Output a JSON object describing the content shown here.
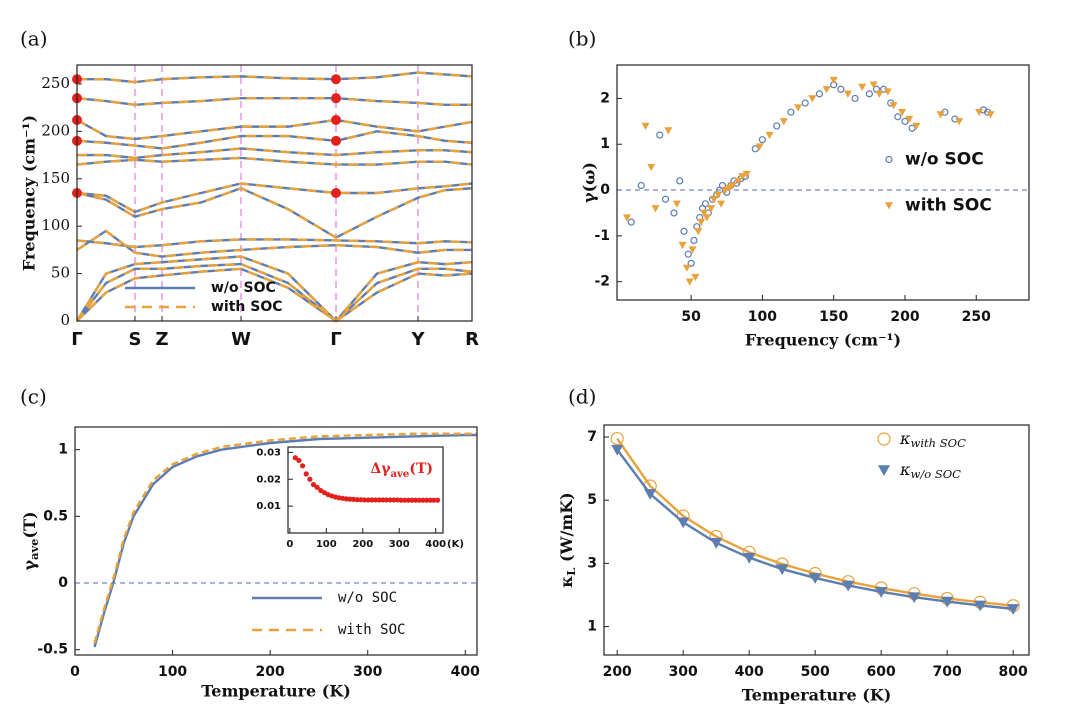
{
  "chart_data": [
    {
      "type": "band",
      "panel_label": "(a)",
      "ylabel": "Frequency (cm⁻¹)",
      "x": [
        0,
        29,
        58,
        85,
        124,
        164,
        211,
        259,
        300,
        341,
        368,
        395
      ],
      "xlim": [
        0,
        395
      ],
      "xticks": [
        {
          "value": 0,
          "label": "Γ"
        },
        {
          "value": 58,
          "label": "S"
        },
        {
          "value": 85,
          "label": "Z"
        },
        {
          "value": 164,
          "label": "W"
        },
        {
          "value": 259,
          "label": "Γ"
        },
        {
          "value": 341,
          "label": "Y"
        },
        {
          "value": 395,
          "label": "R"
        }
      ],
      "xgrid": true,
      "xgrid_color": "#d860d8",
      "ylim": [
        0,
        270
      ],
      "yticks": [
        0,
        50,
        100,
        150,
        200,
        250
      ],
      "legend": "lower left",
      "series": [
        {
          "name": "w/o SOC",
          "color": "#5b7db1",
          "dash": false,
          "bands": [
            [
              0,
              30,
              45,
              48,
              52,
              55,
              35,
              0,
              30,
              50,
              48,
              50
            ],
            [
              0,
              40,
              55,
              55,
              58,
              60,
              40,
              0,
              40,
              55,
              55,
              52
            ],
            [
              0,
              50,
              60,
              62,
              65,
              68,
              50,
              0,
              50,
              62,
              60,
              62
            ],
            [
              75,
              95,
              72,
              68,
              72,
              75,
              78,
              80,
              78,
              72,
              75,
              75
            ],
            [
              85,
              82,
              78,
              80,
              84,
              86,
              86,
              85,
              84,
              82,
              84,
              83
            ],
            [
              135,
              128,
              110,
              118,
              125,
              140,
              118,
              88,
              110,
              130,
              138,
              140
            ],
            [
              135,
              132,
              115,
              125,
              135,
              145,
              140,
              135,
              135,
              140,
              142,
              145
            ],
            [
              165,
              168,
              170,
              168,
              170,
              172,
              168,
              165,
              165,
              168,
              168,
              165
            ],
            [
              175,
              175,
              172,
              175,
              178,
              182,
              178,
              175,
              178,
              180,
              180,
              178
            ],
            [
              190,
              188,
              185,
              182,
              188,
              195,
              195,
              190,
              200,
              195,
              190,
              188
            ],
            [
              212,
              195,
              192,
              195,
              200,
              205,
              205,
              212,
              205,
              200,
              205,
              210
            ],
            [
              235,
              232,
              228,
              230,
              232,
              235,
              235,
              235,
              232,
              230,
              228,
              228
            ],
            [
              255,
              255,
              252,
              255,
              257,
              258,
              256,
              255,
              257,
              262,
              260,
              258
            ]
          ]
        },
        {
          "name": "with SOC",
          "color": "#e9a23b",
          "dash": true,
          "bands": [
            [
              0,
              30,
              45,
              48,
              52,
              55,
              35,
              0,
              30,
              50,
              48,
              50
            ],
            [
              0,
              40,
              55,
              55,
              58,
              60,
              40,
              0,
              40,
              55,
              55,
              52
            ],
            [
              0,
              50,
              60,
              62,
              65,
              68,
              50,
              0,
              50,
              62,
              60,
              62
            ],
            [
              75,
              95,
              72,
              68,
              72,
              75,
              78,
              80,
              78,
              72,
              75,
              75
            ],
            [
              85,
              82,
              78,
              80,
              84,
              86,
              86,
              85,
              84,
              82,
              84,
              83
            ],
            [
              135,
              128,
              110,
              118,
              125,
              140,
              118,
              88,
              110,
              130,
              138,
              140
            ],
            [
              135,
              132,
              115,
              125,
              135,
              145,
              140,
              135,
              135,
              140,
              142,
              145
            ],
            [
              165,
              168,
              170,
              168,
              170,
              172,
              168,
              165,
              165,
              168,
              168,
              165
            ],
            [
              175,
              175,
              172,
              175,
              178,
              182,
              178,
              175,
              178,
              180,
              180,
              178
            ],
            [
              190,
              188,
              185,
              182,
              188,
              195,
              195,
              190,
              200,
              195,
              190,
              188
            ],
            [
              212,
              195,
              192,
              195,
              200,
              205,
              205,
              212,
              205,
              200,
              205,
              210
            ],
            [
              235,
              232,
              228,
              230,
              232,
              235,
              235,
              235,
              232,
              230,
              228,
              228
            ],
            [
              255,
              255,
              252,
              255,
              257,
              258,
              256,
              255,
              257,
              262,
              260,
              258
            ]
          ]
        }
      ],
      "markers": {
        "color": "#e3211c",
        "x": [
          0,
          0,
          0,
          0,
          0,
          259,
          259,
          259,
          259,
          259
        ],
        "values": [
          255,
          235,
          212,
          190,
          135,
          255,
          235,
          212,
          190,
          135
        ]
      }
    },
    {
      "type": "scatter",
      "panel_label": "(b)",
      "xlabel": "Frequency (cm⁻¹)",
      "ylabel": "γ(ω)",
      "xlim": [
        -2,
        287
      ],
      "xticks": [
        50,
        100,
        150,
        200,
        250
      ],
      "ylim": [
        -2.4,
        2.73
      ],
      "yticks": [
        -2,
        -1,
        0,
        1,
        2
      ],
      "hline": 0,
      "hline_color": "#5566bb",
      "legend": "center right",
      "series": [
        {
          "name": "w/o SOC",
          "color": "#5b7db1",
          "marker": "circle-open",
          "marker_size": 3,
          "x": [
            8,
            15,
            28,
            32,
            38,
            42,
            45,
            48,
            50,
            52,
            54,
            56,
            58,
            60,
            62,
            65,
            68,
            70,
            72,
            75,
            78,
            80,
            82,
            85,
            88,
            95,
            100,
            110,
            120,
            130,
            140,
            150,
            155,
            165,
            175,
            180,
            185,
            190,
            195,
            200,
            205,
            228,
            235,
            255,
            258
          ],
          "values": [
            -0.7,
            0.1,
            1.2,
            -0.2,
            -0.5,
            0.2,
            -0.9,
            -1.4,
            -1.6,
            -1.1,
            -0.8,
            -0.6,
            -0.4,
            -0.3,
            -0.5,
            -0.2,
            -0.1,
            0,
            0.1,
            -0.05,
            0.1,
            0.2,
            0.15,
            0.25,
            0.3,
            0.9,
            1.1,
            1.4,
            1.7,
            1.9,
            2.1,
            2.3,
            2.2,
            2,
            2.1,
            2.2,
            2.2,
            1.9,
            1.6,
            1.5,
            1.35,
            1.7,
            1.55,
            1.75,
            1.7
          ]
        },
        {
          "name": "with SOC",
          "color": "#e9a23b",
          "marker": "triangle-down",
          "marker_size": 4,
          "x": [
            5,
            18,
            22,
            25,
            34,
            40,
            44,
            47,
            49,
            51,
            53,
            55,
            57,
            59,
            61,
            64,
            66,
            69,
            71,
            74,
            77,
            79,
            83,
            86,
            89,
            98,
            105,
            115,
            125,
            135,
            145,
            150,
            160,
            170,
            178,
            182,
            188,
            192,
            198,
            203,
            208,
            225,
            238,
            252,
            260
          ],
          "values": [
            -0.6,
            1.4,
            0.5,
            -0.4,
            1.3,
            -0.3,
            -1.2,
            -1.7,
            -2,
            -1.3,
            -1.9,
            -0.9,
            -0.7,
            -0.5,
            -0.6,
            -0.4,
            -0.2,
            -0.1,
            -0.3,
            0,
            0.05,
            0.1,
            0.2,
            0.3,
            0.35,
            0.95,
            1.2,
            1.5,
            1.8,
            2,
            2.2,
            2.4,
            2.1,
            2.25,
            2.3,
            2.1,
            2.15,
            1.85,
            1.7,
            1.55,
            1.4,
            1.65,
            1.5,
            1.7,
            1.65
          ]
        }
      ]
    },
    {
      "type": "line",
      "panel_label": "(c)",
      "xlabel": "Temperature (K)",
      "ylabel": "γave(T)",
      "xlim": [
        0,
        412
      ],
      "xticks": [
        0,
        100,
        200,
        300,
        400
      ],
      "ylim": [
        -0.54,
        1.17
      ],
      "yticks": [
        -0.5,
        0,
        0.5,
        1
      ],
      "hline": 0,
      "hline_color": "#5566bb",
      "legend": "lower right",
      "x": [
        20,
        30,
        40,
        50,
        60,
        80,
        100,
        125,
        150,
        200,
        250,
        300,
        350,
        400,
        412
      ],
      "series": [
        {
          "name": "w/o SOC",
          "color": "#5b7db1",
          "dash": false,
          "values": [
            -0.48,
            -0.22,
            0.02,
            0.3,
            0.5,
            0.74,
            0.87,
            0.95,
            1,
            1.05,
            1.08,
            1.09,
            1.1,
            1.11,
            1.11
          ]
        },
        {
          "name": "with SOC",
          "color": "#e9a23b",
          "dash": true,
          "values": [
            -0.45,
            -0.19,
            0.05,
            0.33,
            0.53,
            0.77,
            0.89,
            0.97,
            1.02,
            1.07,
            1.1,
            1.11,
            1.12,
            1.12,
            1.12
          ]
        }
      ],
      "inset": {
        "type": "scatter",
        "title": "Δγave(T)",
        "x_unit": "(K)",
        "xlim": [
          -5,
          420
        ],
        "xticks": [
          0,
          100,
          200,
          300,
          400
        ],
        "ylim": [
          0,
          0.032
        ],
        "yticks": [
          0.01,
          0.02,
          0.03
        ],
        "series": [
          {
            "color": "#e3211c",
            "marker": "dot",
            "marker_size": 2.6,
            "x": [
              15,
              25,
              35,
              45,
              55,
              65,
              75,
              85,
              95,
              105,
              115,
              125,
              135,
              145,
              155,
              165,
              175,
              185,
              195,
              205,
              215,
              225,
              235,
              245,
              255,
              265,
              275,
              285,
              295,
              305,
              315,
              325,
              335,
              345,
              355,
              365,
              375,
              385,
              395,
              405
            ],
            "values": [
              0.028,
              0.027,
              0.025,
              0.022,
              0.02,
              0.018,
              0.017,
              0.0158,
              0.015,
              0.0143,
              0.0138,
              0.0134,
              0.0131,
              0.0129,
              0.0127,
              0.0126,
              0.0125,
              0.0124,
              0.0124,
              0.0123,
              0.0123,
              0.0123,
              0.0123,
              0.0123,
              0.0123,
              0.0123,
              0.0123,
              0.0123,
              0.0123,
              0.0122,
              0.0122,
              0.0122,
              0.0122,
              0.0122,
              0.0122,
              0.0122,
              0.0122,
              0.0122,
              0.0122,
              0.0122
            ]
          }
        ]
      }
    },
    {
      "type": "line",
      "panel_label": "(d)",
      "xlabel": "Temperature (K)",
      "ylabel": "κL (W/mK)",
      "xlim": [
        180,
        824
      ],
      "xticks": [
        200,
        300,
        400,
        500,
        600,
        700,
        800
      ],
      "ylim": [
        0.1,
        7.38
      ],
      "yticks": [
        1,
        3,
        5,
        7
      ],
      "legend": "upper right",
      "x": [
        200,
        250,
        300,
        350,
        400,
        450,
        500,
        550,
        600,
        650,
        700,
        750,
        800
      ],
      "series": [
        {
          "name": "κwith SOC",
          "color": "#e9a23b",
          "dash": false,
          "marker": "circle-open",
          "marker_size": 6,
          "values": [
            6.95,
            5.45,
            4.5,
            3.85,
            3.35,
            2.98,
            2.68,
            2.42,
            2.22,
            2.04,
            1.89,
            1.77,
            1.66
          ]
        },
        {
          "name": "κw/o SOC",
          "color": "#5b7db1",
          "dash": false,
          "marker": "triangle-down",
          "marker_size": 6,
          "values": [
            6.6,
            5.2,
            4.3,
            3.65,
            3.18,
            2.82,
            2.54,
            2.3,
            2.1,
            1.93,
            1.79,
            1.67,
            1.56
          ]
        }
      ]
    }
  ]
}
